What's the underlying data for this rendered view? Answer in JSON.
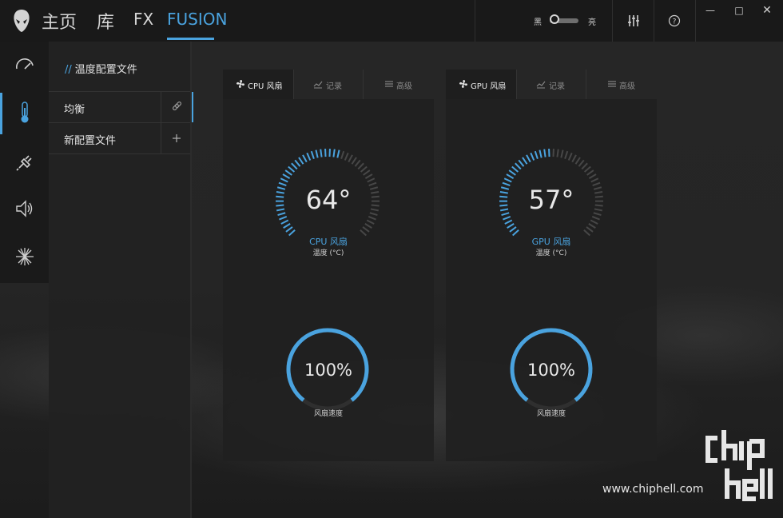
{
  "app": {
    "nav": [
      {
        "label": "主页",
        "active": false
      },
      {
        "label": "库",
        "active": false
      },
      {
        "label": "FX",
        "active": false
      },
      {
        "label": "FUSION",
        "active": true
      }
    ],
    "theme": {
      "dark_label": "黑",
      "light_label": "亮"
    },
    "accent_color": "#4aa3df",
    "toolbar_icons": [
      "alienware-logo-icon",
      "equalizer-icon",
      "help-icon",
      "minimize-icon",
      "maximize-icon",
      "close-icon"
    ]
  },
  "rail": {
    "items": [
      {
        "icon": "gauge-icon",
        "active": false
      },
      {
        "icon": "thermometer-icon",
        "active": true
      },
      {
        "icon": "power-plug-icon",
        "active": false
      },
      {
        "icon": "speaker-icon",
        "active": false
      },
      {
        "icon": "starburst-icon",
        "active": false
      }
    ]
  },
  "profiles": {
    "title_prefix": "//",
    "title": "温度配置文件",
    "items": [
      {
        "label": "均衡",
        "icon": "link-icon",
        "active": true
      },
      {
        "label": "新配置文件",
        "icon": "plus-icon",
        "active": false
      }
    ]
  },
  "cards": [
    {
      "tabs": [
        {
          "label": "CPU 风扇",
          "icon": "fan-icon",
          "active": true
        },
        {
          "label": "记录",
          "icon": "chart-icon",
          "active": false
        },
        {
          "label": "高级",
          "icon": "sliders-icon",
          "active": false
        }
      ],
      "temperature": "64°",
      "temperature_fraction": 0.56,
      "fan_name": "CPU 风扇",
      "temp_unit_label": "温度 (°C)",
      "speed_value": "100%",
      "speed_fraction": 1.0,
      "speed_label": "风扇速度"
    },
    {
      "tabs": [
        {
          "label": "GPU 风扇",
          "icon": "fan-icon",
          "active": true
        },
        {
          "label": "记录",
          "icon": "chart-icon",
          "active": false
        },
        {
          "label": "高级",
          "icon": "sliders-icon",
          "active": false
        }
      ],
      "temperature": "57°",
      "temperature_fraction": 0.5,
      "fan_name": "GPU 风扇",
      "temp_unit_label": "温度 (°C)",
      "speed_value": "100%",
      "speed_fraction": 1.0,
      "speed_label": "风扇速度"
    }
  ],
  "watermark": {
    "text": "www.chiphell.com"
  }
}
